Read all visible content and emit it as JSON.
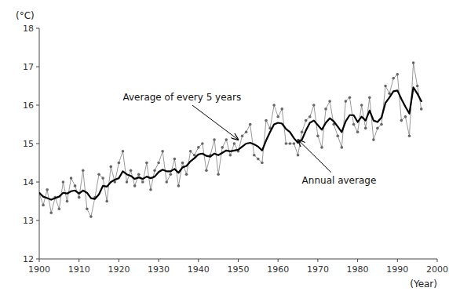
{
  "chart_data": {
    "type": "line",
    "title": "",
    "xlabel": "(Year)",
    "ylabel": "(°C)",
    "xlim": [
      1900,
      2000
    ],
    "ylim": [
      12,
      18
    ],
    "xticks": [
      1900,
      1910,
      1920,
      1930,
      1940,
      1950,
      1960,
      1970,
      1980,
      1990,
      2000
    ],
    "yticks": [
      12,
      13,
      14,
      15,
      16,
      17,
      18
    ],
    "grid": false,
    "x": [
      1900,
      1901,
      1902,
      1903,
      1904,
      1905,
      1906,
      1907,
      1908,
      1909,
      1910,
      1911,
      1912,
      1913,
      1914,
      1915,
      1916,
      1917,
      1918,
      1919,
      1920,
      1921,
      1922,
      1923,
      1924,
      1925,
      1926,
      1927,
      1928,
      1929,
      1930,
      1931,
      1932,
      1933,
      1934,
      1935,
      1936,
      1937,
      1938,
      1939,
      1940,
      1941,
      1942,
      1943,
      1944,
      1945,
      1946,
      1947,
      1948,
      1949,
      1950,
      1951,
      1952,
      1953,
      1954,
      1955,
      1956,
      1957,
      1958,
      1959,
      1960,
      1961,
      1962,
      1963,
      1964,
      1965,
      1966,
      1967,
      1968,
      1969,
      1970,
      1971,
      1972,
      1973,
      1974,
      1975,
      1976,
      1977,
      1978,
      1979,
      1980,
      1981,
      1982,
      1983,
      1984,
      1985,
      1986,
      1987,
      1988,
      1989,
      1990,
      1991,
      1992,
      1993,
      1994,
      1995,
      1996
    ],
    "series": [
      {
        "color": "#666666",
        "marker": "dot",
        "values": [
          13.7,
          13.4,
          13.8,
          13.2,
          13.6,
          13.3,
          14.0,
          13.5,
          14.1,
          13.9,
          13.6,
          14.3,
          13.3,
          13.1,
          13.6,
          14.2,
          14.1,
          13.5,
          14.4,
          14.0,
          14.5,
          14.8,
          14.0,
          14.3,
          13.9,
          14.2,
          14.0,
          14.5,
          13.8,
          14.3,
          14.5,
          14.8,
          14.0,
          14.2,
          14.6,
          13.9,
          14.5,
          14.2,
          14.8,
          14.7,
          14.9,
          15.0,
          14.3,
          14.7,
          15.1,
          14.2,
          14.9,
          15.1,
          14.7,
          15.0,
          14.8,
          15.2,
          15.3,
          15.5,
          14.7,
          14.6,
          14.5,
          15.6,
          15.4,
          16.0,
          15.7,
          15.9,
          15.0,
          15.0,
          15.0,
          14.7,
          15.3,
          15.6,
          15.7,
          16.0,
          15.2,
          14.9,
          15.9,
          16.1,
          15.5,
          15.2,
          14.9,
          16.1,
          16.2,
          15.5,
          15.3,
          16.0,
          15.4,
          16.2,
          15.1,
          15.4,
          15.5,
          16.5,
          16.3,
          16.7,
          16.8,
          15.6,
          15.7,
          15.2,
          17.1,
          16.5,
          15.9
        ]
      },
      {
        "color": "#000000",
        "values": [
          13.72,
          13.62,
          13.58,
          13.54,
          13.58,
          13.62,
          13.72,
          13.7,
          13.76,
          13.78,
          13.7,
          13.78,
          13.72,
          13.58,
          13.56,
          13.68,
          13.9,
          13.88,
          14.0,
          14.06,
          14.1,
          14.28,
          14.2,
          14.16,
          14.08,
          14.12,
          14.08,
          14.14,
          14.1,
          14.14,
          14.26,
          14.32,
          14.28,
          14.28,
          14.34,
          14.24,
          14.38,
          14.42,
          14.54,
          14.62,
          14.72,
          14.74,
          14.68,
          14.66,
          14.74,
          14.7,
          14.76,
          14.82,
          14.8,
          14.82,
          14.84,
          14.92,
          15.0,
          15.02,
          14.98,
          14.92,
          14.82,
          15.08,
          15.3,
          15.5,
          15.54,
          15.52,
          15.38,
          15.3,
          15.14,
          15.02,
          15.1,
          15.34,
          15.54,
          15.6,
          15.48,
          15.36,
          15.54,
          15.66,
          15.58,
          15.44,
          15.3,
          15.58,
          15.74,
          15.74,
          15.56,
          15.7,
          15.6,
          15.86,
          15.6,
          15.56,
          15.68,
          16.06,
          16.2,
          16.36,
          16.38,
          16.16,
          15.96,
          15.78,
          16.46,
          16.3,
          16.1
        ]
      }
    ],
    "annotations": [
      {
        "text": "Average of every 5 years",
        "xy": [
          1950,
          15.1
        ],
        "xytext": [
          1921,
          16.2
        ]
      },
      {
        "text": "Annual average",
        "xy": [
          1965,
          15.1
        ],
        "xytext": [
          1966,
          14.05
        ]
      }
    ]
  }
}
